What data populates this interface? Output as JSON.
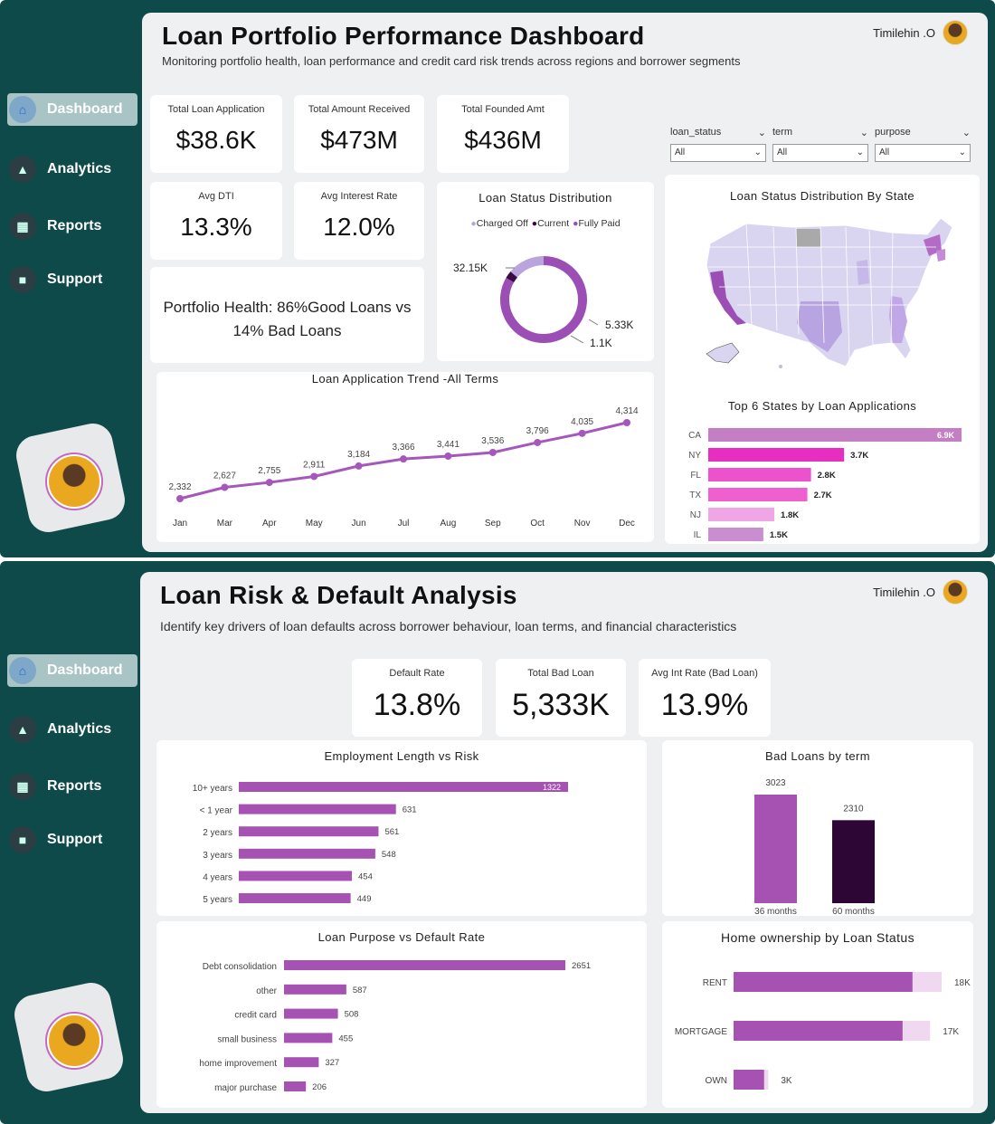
{
  "sidebar": {
    "items": [
      {
        "label": "Dashboard",
        "icon": "home-icon"
      },
      {
        "label": "Analytics",
        "icon": "analytics-icon"
      },
      {
        "label": "Reports",
        "icon": "reports-icon"
      },
      {
        "label": "Support",
        "icon": "support-icon"
      }
    ]
  },
  "dash1": {
    "title": "Loan Portfolio Performance Dashboard",
    "subtitle": "Monitoring portfolio health, loan performance and credit card risk trends across regions and borrower segments",
    "user": "Timilehin .O",
    "kpis": [
      {
        "label": "Total Loan Application",
        "value": "$38.6K"
      },
      {
        "label": "Total Amount Received",
        "value": "$473M"
      },
      {
        "label": "Total Founded Amt",
        "value": "$436M"
      },
      {
        "label": "Avg DTI",
        "value": "13.3%"
      },
      {
        "label": "Avg Interest Rate",
        "value": "12.0%"
      }
    ],
    "health_text": "Portfolio Health: 86%Good Loans vs 14% Bad Loans",
    "filters": [
      {
        "label": "loan_status",
        "value": "All"
      },
      {
        "label": "term",
        "value": "All"
      },
      {
        "label": "purpose",
        "value": "All"
      }
    ],
    "donut": {
      "title": "Loan Status Distribution",
      "legend": [
        "Charged Off",
        "Current",
        "Fully Paid"
      ],
      "colors": [
        "#b9a4dc",
        "#3b0a45",
        "#9b4fb5"
      ],
      "labels": [
        "32.15K",
        "5.33K",
        "1.1K"
      ]
    },
    "map": {
      "title": "Loan Status Distribution By State"
    },
    "top_states": {
      "title": "Top 6 States by Loan Applications"
    },
    "trend": {
      "title": "Loan Application Trend -All Terms"
    }
  },
  "dash2": {
    "title": "Loan Risk & Default Analysis",
    "subtitle": "Identify key drivers of loan defaults across borrower behaviour, loan terms, and financial characteristics",
    "user": "Timilehin .O",
    "kpis": [
      {
        "label": "Default Rate",
        "value": "13.8%"
      },
      {
        "label": "Total Bad Loan",
        "value": "5,333K"
      },
      {
        "label": "Avg Int Rate (Bad Loan)",
        "value": "13.9%"
      }
    ],
    "employment": {
      "title": "Employment Length vs Risk"
    },
    "term": {
      "title": "Bad Loans by term"
    },
    "purpose": {
      "title": "Loan Purpose vs Default Rate"
    },
    "home": {
      "title": "Home ownership by Loan Status"
    }
  },
  "chart_data": [
    {
      "type": "pie",
      "title": "Loan Status Distribution",
      "categories": [
        "Fully Paid",
        "Current",
        "Charged Off"
      ],
      "values": [
        32.15,
        1.1,
        5.33
      ],
      "data_labels": [
        "32.15K",
        "1.1K",
        "5.33K"
      ]
    },
    {
      "type": "line",
      "title": "Loan Application Trend -All Terms",
      "x": [
        "Jan",
        "Mar",
        "Apr",
        "May",
        "Jun",
        "Jul",
        "Aug",
        "Sep",
        "Oct",
        "Nov",
        "Dec"
      ],
      "values": [
        2332,
        2627,
        2755,
        2911,
        3184,
        3366,
        3441,
        3536,
        3796,
        4035,
        4314
      ],
      "value_labels": [
        "2,332",
        "2,627",
        "2,755",
        "2,911",
        "3,184",
        "3,366",
        "3,441",
        "3,536",
        "3,796",
        "4,035",
        "4,314"
      ]
    },
    {
      "type": "bar",
      "orientation": "horizontal",
      "title": "Top 6 States by Loan Applications",
      "categories": [
        "CA",
        "NY",
        "FL",
        "TX",
        "NJ",
        "IL"
      ],
      "values": [
        6.9,
        3.7,
        2.8,
        2.7,
        1.8,
        1.5
      ],
      "value_labels": [
        "6.9K",
        "3.7K",
        "2.8K",
        "2.7K",
        "1.8K",
        "1.5K"
      ],
      "colors": [
        "#c47ec4",
        "#e62fc0",
        "#ec52cc",
        "#ee5fd0",
        "#f0a6e4",
        "#c88ecf"
      ]
    },
    {
      "type": "bar",
      "orientation": "horizontal",
      "title": "Employment Length vs Risk",
      "categories": [
        "10+ years",
        "< 1 year",
        "2 years",
        "3 years",
        "4 years",
        "5 years"
      ],
      "values": [
        1322,
        631,
        561,
        548,
        454,
        449
      ]
    },
    {
      "type": "bar",
      "title": "Bad Loans by term",
      "categories": [
        "36 months",
        "60 months"
      ],
      "values": [
        3023,
        2310
      ],
      "colors": [
        "#a652b3",
        "#2e0636"
      ]
    },
    {
      "type": "bar",
      "orientation": "horizontal",
      "title": "Loan Purpose vs Default Rate",
      "categories": [
        "Debt consolidation",
        "other",
        "credit card",
        "small business",
        "home improvement",
        "major purchase"
      ],
      "values": [
        2651,
        587,
        508,
        455,
        327,
        206
      ]
    },
    {
      "type": "bar",
      "orientation": "horizontal",
      "title": "Home ownership by Loan Status",
      "categories": [
        "RENT",
        "MORTGAGE",
        "OWN"
      ],
      "values": [
        18,
        17,
        3
      ],
      "value_labels": [
        "18K",
        "17K",
        "3K"
      ]
    }
  ]
}
